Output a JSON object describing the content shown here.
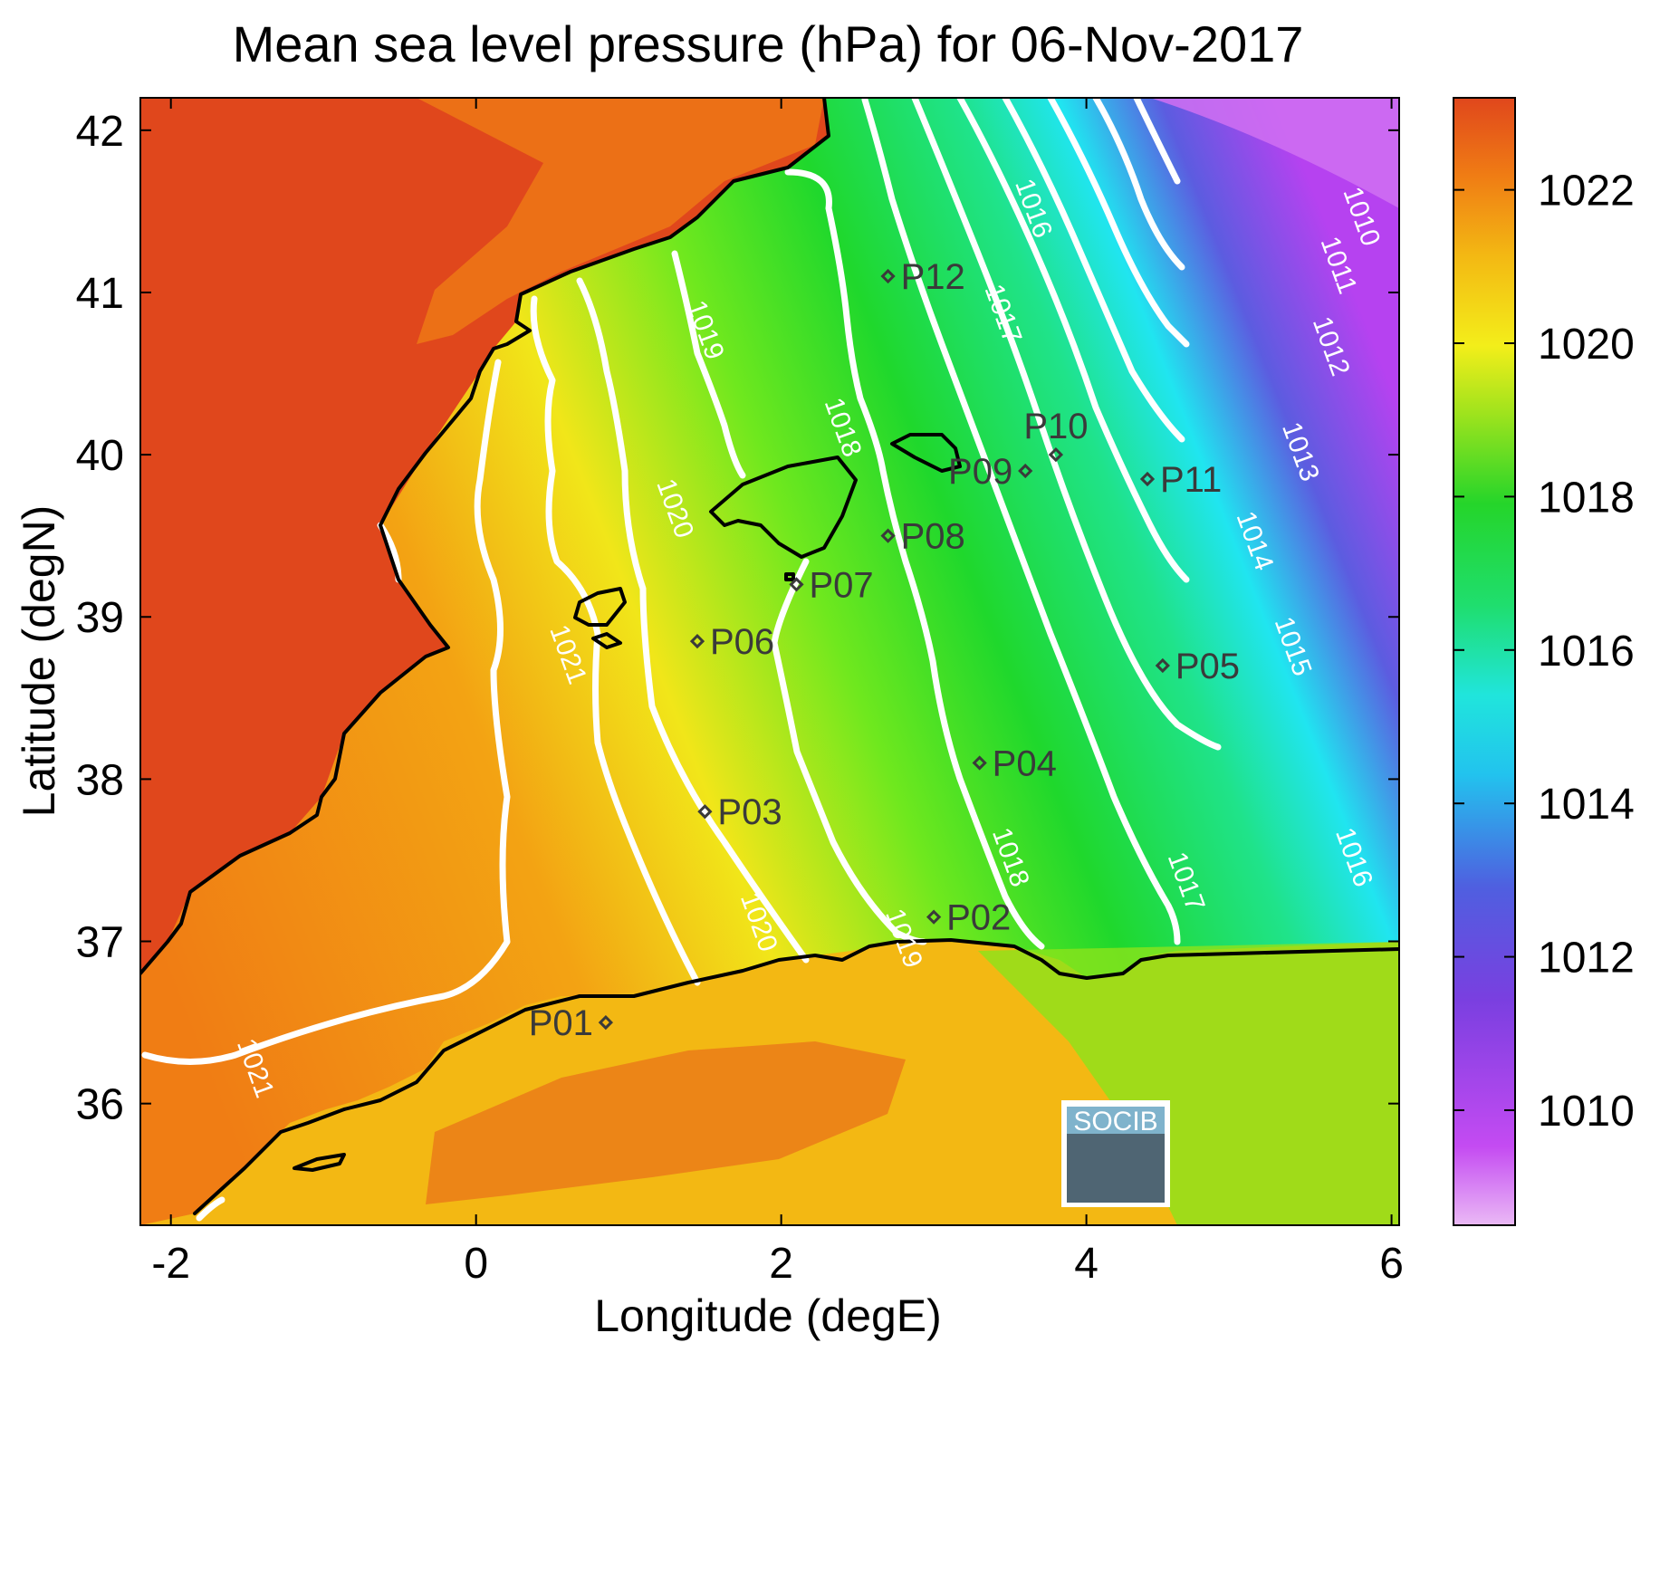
{
  "title": "Mean sea level pressure (hPa) for 06-Nov-2017",
  "xlabel": "Longitude (degE)",
  "ylabel": "Latitude (degN)",
  "xticks": [
    {
      "value": -2,
      "label": "-2"
    },
    {
      "value": 0,
      "label": "0"
    },
    {
      "value": 2,
      "label": "2"
    },
    {
      "value": 4,
      "label": "4"
    },
    {
      "value": 6,
      "label": "6"
    }
  ],
  "yticks": [
    {
      "value": 36,
      "label": "36"
    },
    {
      "value": 37,
      "label": "37"
    },
    {
      "value": 38,
      "label": "38"
    },
    {
      "value": 39,
      "label": "39"
    },
    {
      "value": 40,
      "label": "40"
    },
    {
      "value": 41,
      "label": "41"
    },
    {
      "value": 42,
      "label": "42"
    }
  ],
  "xlim": [
    -2.2,
    6.05
  ],
  "ylim": [
    35.25,
    42.2
  ],
  "colorbar": {
    "range": [
      1008.5,
      1023.2
    ],
    "ticks": [
      "1010",
      "1012",
      "1014",
      "1016",
      "1018",
      "1020",
      "1022"
    ],
    "tick_values": [
      1010,
      1012,
      1014,
      1016,
      1018,
      1020,
      1022
    ]
  },
  "colors": {
    "land_high": "#e0471c",
    "sea_orange": "#f07d14",
    "sea_yellow": "#f1e619",
    "sea_green": "#1fd82c",
    "sea_cyan": "#20e5f0",
    "sea_blue": "#5c5ce0",
    "sea_purple": "#b642f0",
    "light_pink": "#e8b5f4",
    "contour": "#ffffff",
    "coast": "#000000"
  },
  "contour_labels": [
    {
      "text": "1021",
      "lon": -1.5,
      "lat": 36.2
    },
    {
      "text": "1021",
      "lon": 0.55,
      "lat": 38.75
    },
    {
      "text": "1020",
      "lon": 1.25,
      "lat": 39.65
    },
    {
      "text": "1020",
      "lon": 1.8,
      "lat": 37.1
    },
    {
      "text": "1019",
      "lon": 1.45,
      "lat": 40.75
    },
    {
      "text": "1019",
      "lon": 2.75,
      "lat": 37.0
    },
    {
      "text": "1018",
      "lon": 2.35,
      "lat": 40.15
    },
    {
      "text": "1018",
      "lon": 3.45,
      "lat": 37.5
    },
    {
      "text": "1017",
      "lon": 3.4,
      "lat": 40.85
    },
    {
      "text": "1017",
      "lon": 4.6,
      "lat": 37.35
    },
    {
      "text": "1016",
      "lon": 3.6,
      "lat": 41.5
    },
    {
      "text": "1016",
      "lon": 5.7,
      "lat": 37.5
    },
    {
      "text": "1015",
      "lon": 5.3,
      "lat": 38.8
    },
    {
      "text": "1014",
      "lon": 5.05,
      "lat": 39.45
    },
    {
      "text": "1013",
      "lon": 5.35,
      "lat": 40.0
    },
    {
      "text": "1012",
      "lon": 5.55,
      "lat": 40.65
    },
    {
      "text": "1011",
      "lon": 5.6,
      "lat": 41.15
    },
    {
      "text": "1010",
      "lon": 5.75,
      "lat": 41.45
    }
  ],
  "stations": [
    {
      "label": "P01",
      "lon": 0.85,
      "lat": 36.5,
      "side": "left"
    },
    {
      "label": "P02",
      "lon": 3.0,
      "lat": 37.15,
      "side": "right"
    },
    {
      "label": "P03",
      "lon": 1.5,
      "lat": 37.8,
      "side": "right"
    },
    {
      "label": "P04",
      "lon": 3.3,
      "lat": 38.1,
      "side": "right"
    },
    {
      "label": "P05",
      "lon": 4.5,
      "lat": 38.7,
      "side": "right"
    },
    {
      "label": "P06",
      "lon": 1.45,
      "lat": 38.85,
      "side": "right"
    },
    {
      "label": "P07",
      "lon": 2.1,
      "lat": 39.2,
      "side": "right"
    },
    {
      "label": "P08",
      "lon": 2.7,
      "lat": 39.5,
      "side": "right"
    },
    {
      "label": "P09",
      "lon": 3.6,
      "lat": 39.9,
      "side": "left"
    },
    {
      "label": "P10",
      "lon": 3.8,
      "lat": 40.0,
      "side": "above"
    },
    {
      "label": "P11",
      "lon": 4.4,
      "lat": 39.85,
      "side": "right"
    },
    {
      "label": "P12",
      "lon": 2.7,
      "lat": 41.1,
      "side": "right"
    }
  ],
  "logo": {
    "text": "SOCIB"
  }
}
